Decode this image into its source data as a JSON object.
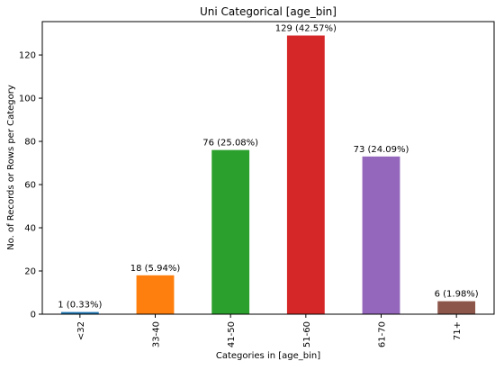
{
  "chart_data": {
    "type": "bar",
    "title": "Uni Categorical [age_bin]",
    "xlabel": "Categories in [age_bin]",
    "ylabel": "No. of Records or Rows per Category",
    "categories": [
      "<32",
      "33-40",
      "41-50",
      "51-60",
      "61-70",
      "71+"
    ],
    "values": [
      1,
      18,
      76,
      129,
      73,
      6
    ],
    "data_labels": [
      "1 (0.33%)",
      "18 (5.94%)",
      "76 (25.08%)",
      "129 (42.57%)",
      "73 (24.09%)",
      "6 (1.98%)"
    ],
    "colors": [
      "#1f77b4",
      "#ff7f0e",
      "#2ca02c",
      "#d62728",
      "#9467bd",
      "#8c564b"
    ],
    "ylim": [
      0,
      135.45
    ],
    "yticks": [
      0,
      20,
      40,
      60,
      80,
      100,
      120
    ],
    "grid": false,
    "legend": "none"
  }
}
